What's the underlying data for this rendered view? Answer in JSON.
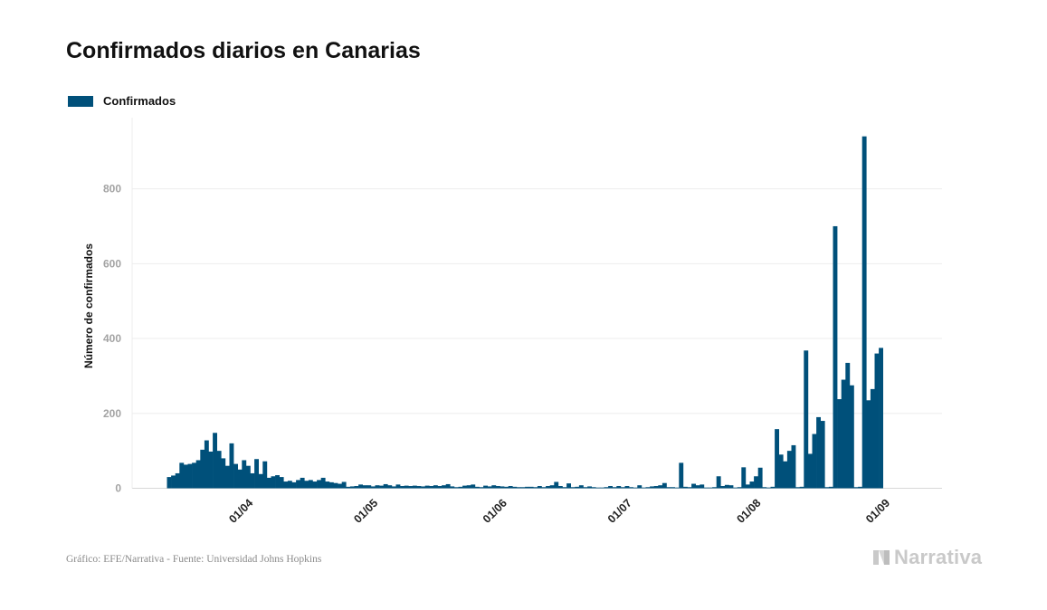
{
  "title": "Confirmados diarios en Canarias",
  "legend": {
    "label": "Confirmados",
    "color": "#00507a"
  },
  "source": "Gráfico: EFE/Narrativa - Fuente: Universidad Johns Hopkins",
  "brand": {
    "name": "Narrativa",
    "icon": "narrativa-logo-icon"
  },
  "chart_data": {
    "type": "bar",
    "title": "Confirmados diarios en Canarias",
    "xlabel": "",
    "ylabel": "Número de confirmados",
    "ylim": [
      0,
      990
    ],
    "y_ticks": [
      "0",
      "200",
      "400",
      "600",
      "800"
    ],
    "x_tick_labels": [
      "01/04",
      "01/05",
      "01/06",
      "01/07",
      "01/08",
      "01/09"
    ],
    "x_tick_dates": [
      "2020-04-01",
      "2020-05-01",
      "2020-06-01",
      "2020-07-01",
      "2020-08-01",
      "2020-09-01"
    ],
    "grid": true,
    "legend_position": "top-left",
    "series": [
      {
        "name": "Confirmados",
        "start_date": "2020-03-13",
        "values": [
          30,
          34,
          40,
          68,
          63,
          65,
          68,
          75,
          103,
          128,
          98,
          148,
          100,
          80,
          60,
          120,
          65,
          50,
          75,
          60,
          40,
          78,
          38,
          72,
          28,
          32,
          35,
          30,
          18,
          20,
          16,
          22,
          28,
          20,
          22,
          18,
          22,
          28,
          18,
          16,
          14,
          12,
          17,
          4,
          5,
          6,
          10,
          8,
          8,
          5,
          8,
          7,
          11,
          8,
          5,
          10,
          6,
          7,
          6,
          7,
          6,
          5,
          7,
          6,
          8,
          6,
          8,
          11,
          5,
          3,
          4,
          7,
          8,
          10,
          4,
          3,
          7,
          5,
          8,
          6,
          5,
          4,
          6,
          4,
          3,
          3,
          4,
          4,
          3,
          6,
          3,
          6,
          8,
          17,
          6,
          3,
          13,
          3,
          4,
          8,
          3,
          5,
          3,
          2,
          2,
          3,
          6,
          3,
          6,
          3,
          6,
          3,
          2,
          8,
          2,
          3,
          5,
          6,
          8,
          14,
          3,
          3,
          2,
          68,
          4,
          3,
          12,
          8,
          10,
          2,
          2,
          3,
          32,
          6,
          9,
          8,
          2,
          3,
          56,
          10,
          18,
          32,
          55,
          3,
          2,
          4,
          158,
          90,
          72,
          100,
          115,
          3,
          4,
          368,
          92,
          145,
          190,
          180,
          3,
          4,
          700,
          238,
          290,
          335,
          275,
          3,
          4,
          940,
          235,
          265,
          360,
          375
        ]
      }
    ]
  }
}
